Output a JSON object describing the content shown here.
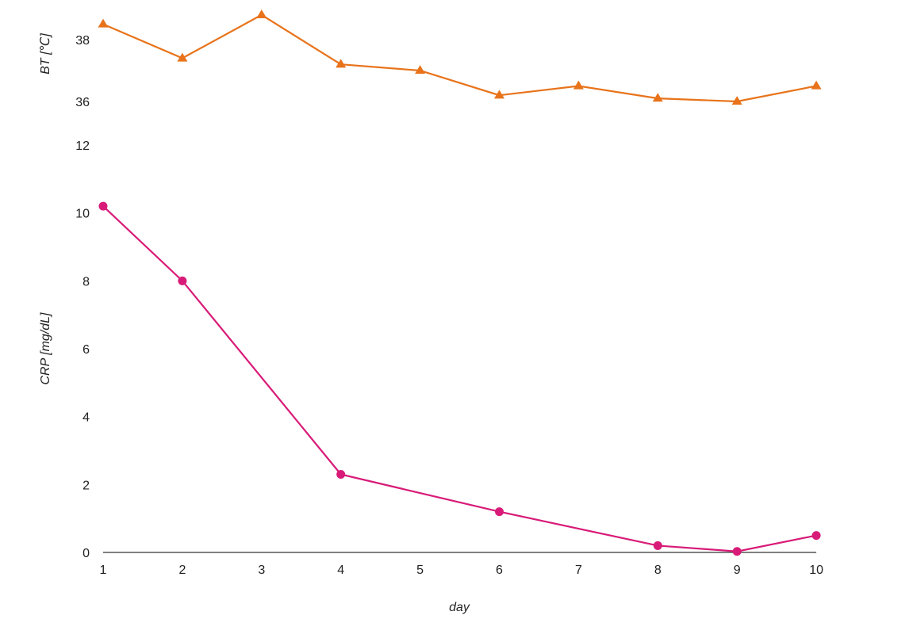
{
  "chart_data": [
    {
      "type": "line",
      "ylabel": "BT [℃]",
      "x": [
        1,
        2,
        3,
        4,
        5,
        6,
        7,
        8,
        9,
        10
      ],
      "yticks": [
        "38",
        "36"
      ],
      "ylim": [
        35.3,
        38.9
      ],
      "series": [
        {
          "name": "",
          "marker": "triangle",
          "color": "#e8731a",
          "values": [
            38.5,
            37.4,
            38.8,
            37.2,
            37.0,
            36.2,
            36.5,
            36.1,
            36.0,
            36.5
          ]
        }
      ]
    },
    {
      "type": "line",
      "ylabel": "CRP [mg/dL]",
      "xlabel": "day",
      "x": [
        1,
        2,
        3,
        4,
        5,
        6,
        7,
        8,
        9,
        10
      ],
      "xticks": [
        "1",
        "2",
        "3",
        "4",
        "5",
        "6",
        "7",
        "8",
        "9",
        "10"
      ],
      "yticks": [
        "12",
        "10",
        "8",
        "6",
        "4",
        "2",
        "0"
      ],
      "ylim": [
        0,
        12
      ],
      "series": [
        {
          "name": "",
          "marker": "circle",
          "color": "#d81b78",
          "points": [
            [
              1,
              10.2
            ],
            [
              2,
              8.0
            ],
            [
              4,
              2.3
            ],
            [
              6,
              1.2
            ],
            [
              8,
              0.2
            ],
            [
              9,
              0.03
            ],
            [
              10,
              0.5
            ]
          ]
        }
      ]
    }
  ]
}
